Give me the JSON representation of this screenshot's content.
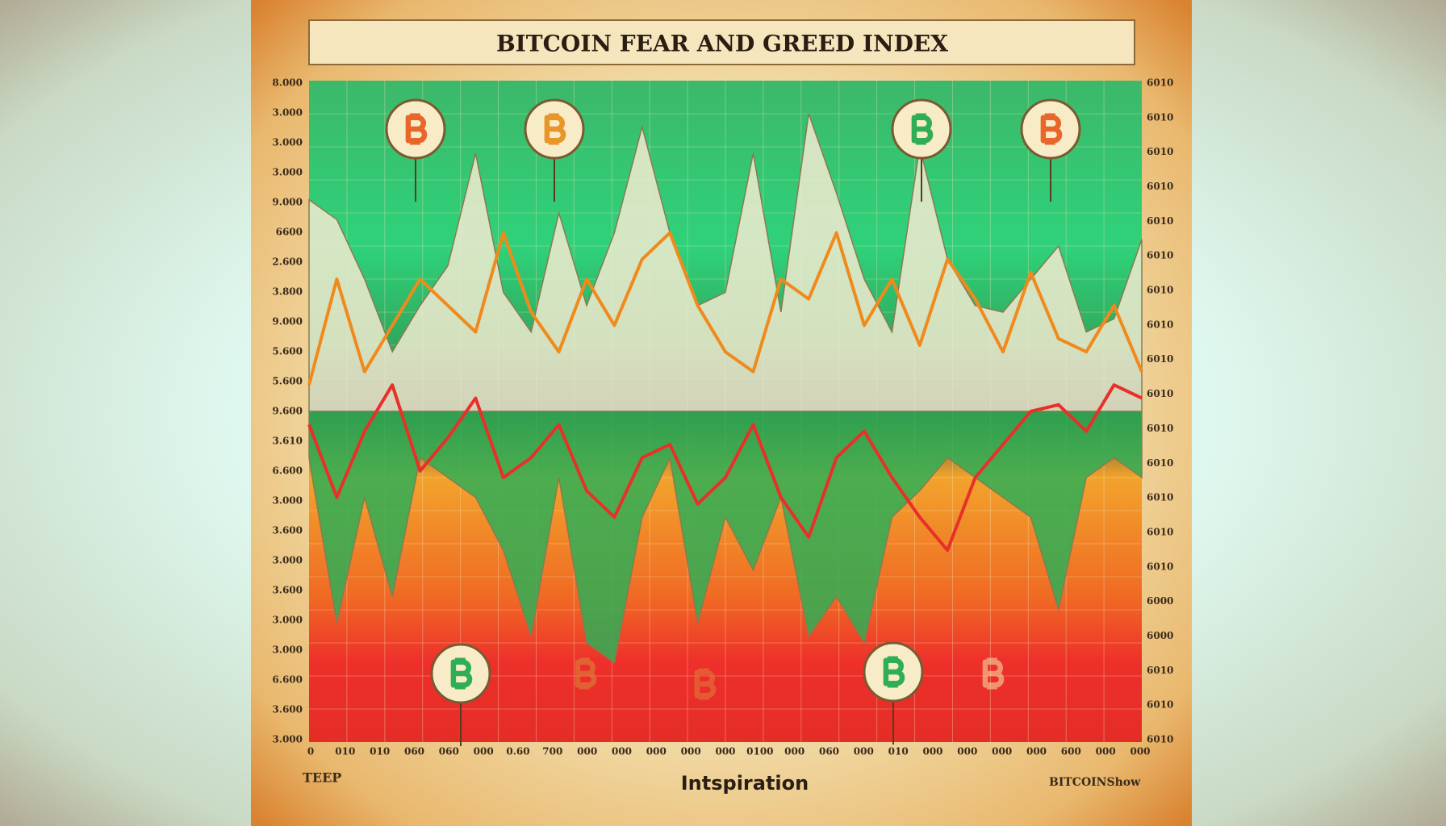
{
  "chart_data": {
    "type": "line",
    "title": "BITCOIN FEAR AND GREED INDEX",
    "x_label": "Intspiration",
    "corner_left": "TEEP",
    "corner_right": "BITCOINShow",
    "ylim": [
      0,
      100
    ],
    "grid": true,
    "left_axis_text": [
      "8.000",
      "3.000",
      "3.000",
      "3.000",
      "9.000",
      "6600",
      "2.600",
      "3.800",
      "9.000",
      "5.600",
      "5.600",
      "9.600",
      "3.610",
      "6.600",
      "3.000",
      "3.600",
      "3.000",
      "3.600",
      "3.000",
      "3.000",
      "6.600",
      "3.600",
      "3.000"
    ],
    "right_axis_text": [
      "6010",
      "6010",
      "6010",
      "6010",
      "6010",
      "6010",
      "6010",
      "6010",
      "6010",
      "6010",
      "6010",
      "6010",
      "6010",
      "6010",
      "6010",
      "6000",
      "6000",
      "6010",
      "6010",
      "6010"
    ],
    "bottom_axis_text": [
      "0",
      "010",
      "010",
      "060",
      "060",
      "000",
      "0.60",
      "700",
      "000",
      "000",
      "000",
      "000",
      "000",
      "0100",
      "000",
      "060",
      "000",
      "010",
      "000",
      "000",
      "000",
      "000",
      "600",
      "000",
      "000"
    ],
    "series": [
      {
        "kind": "area",
        "color": "#f1ead0",
        "values": [
          82,
          79,
          70,
          59,
          66,
          72,
          89,
          68,
          62,
          80,
          66,
          77,
          93,
          77,
          66,
          68,
          89,
          65,
          95,
          83,
          70,
          62,
          90,
          73,
          66,
          65,
          70,
          75,
          62,
          64,
          76
        ]
      },
      {
        "kind": "area",
        "color": "#2fae55",
        "values": [
          43,
          18,
          37,
          22,
          43,
          40,
          37,
          29,
          16,
          40,
          15,
          12,
          34,
          43,
          18,
          34,
          26,
          37,
          16,
          22,
          15,
          34,
          38,
          43,
          40,
          37,
          34,
          20,
          40,
          43,
          40
        ]
      },
      {
        "kind": "line",
        "color": "#f08a1c",
        "values": [
          54,
          70,
          56,
          63,
          70,
          66,
          62,
          77,
          65,
          59,
          70,
          63,
          73,
          77,
          66,
          59,
          56,
          70,
          67,
          77,
          63,
          70,
          60,
          73,
          67,
          59,
          71,
          61,
          59,
          66,
          56
        ]
      },
      {
        "kind": "line",
        "color": "#e8302a",
        "values": [
          48,
          37,
          47,
          54,
          41,
          46,
          52,
          40,
          43,
          48,
          38,
          34,
          43,
          45,
          36,
          40,
          48,
          37,
          31,
          43,
          47,
          40,
          34,
          29,
          40,
          45,
          50,
          51,
          47,
          54,
          52
        ]
      }
    ]
  }
}
